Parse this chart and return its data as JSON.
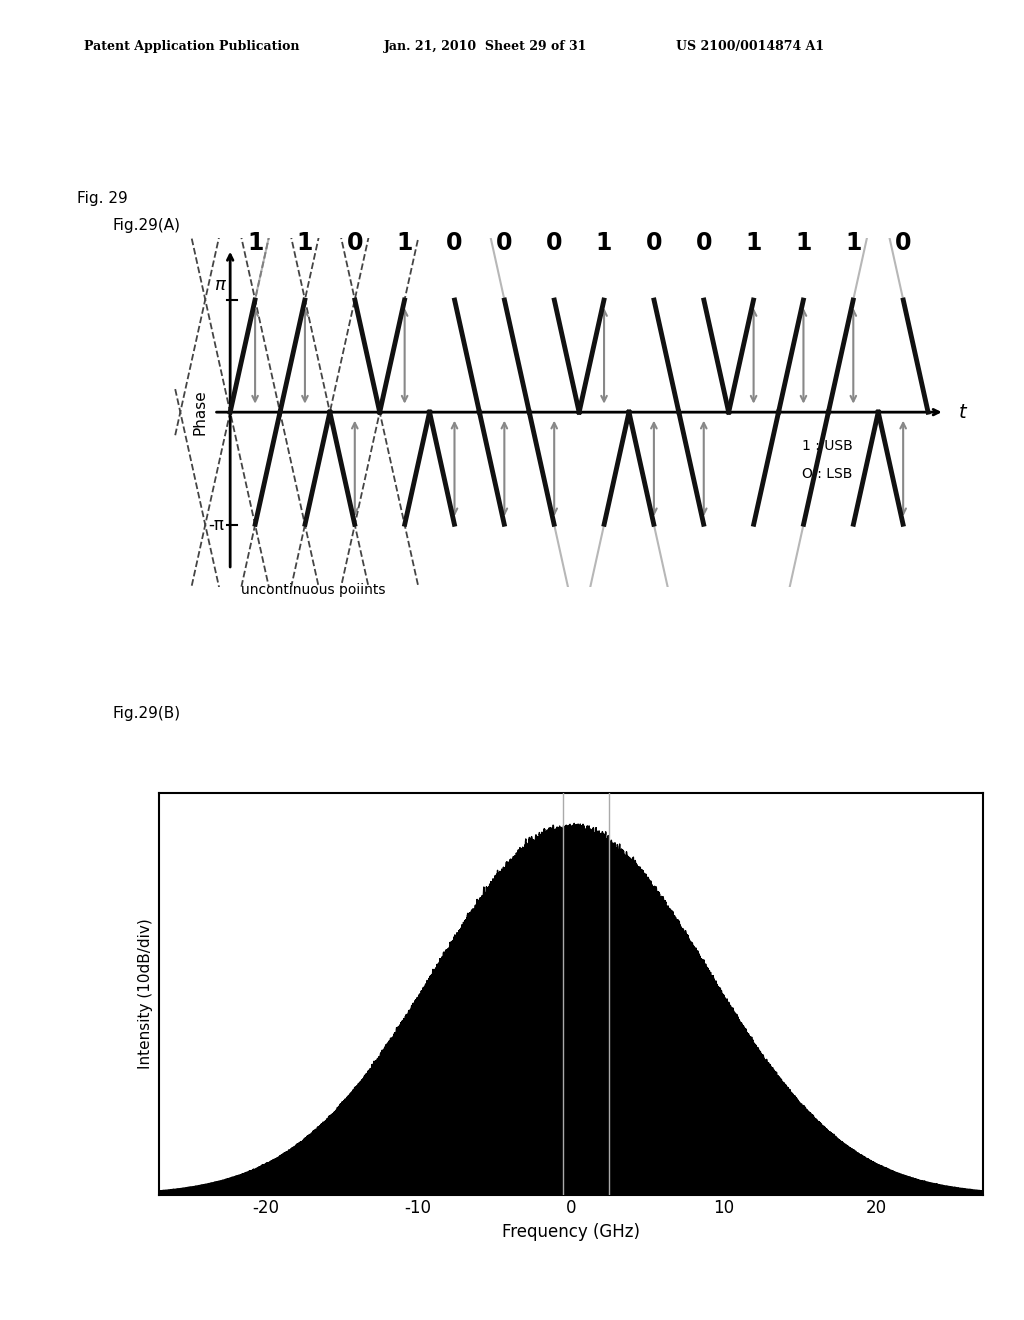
{
  "header_left": "Patent Application Publication",
  "header_mid": "Jan. 21, 2010  Sheet 29 of 31",
  "header_right": "US 2100/0014874 A1",
  "fig_label": "Fig. 29",
  "fig_A_label": "Fig.29(A)",
  "fig_B_label": "Fig.29(B)",
  "bit_sequence": [
    "1",
    "1",
    "0",
    "1",
    "0",
    "0",
    "0",
    "1",
    "0",
    "0",
    "1",
    "1",
    "1",
    "0"
  ],
  "phase_label": "Phase",
  "t_label": "t",
  "pi_label": "π",
  "neg_pi_label": "-π",
  "usb_label": "1 : USB",
  "lsb_label": "O : LSB",
  "uncontinuous_label": "uncontinuous poiints",
  "xlabel_B": "Frequency (GHz)",
  "ylabel_B": "Intensity (10dB/div)",
  "xticks_B": [
    -20,
    -10,
    0,
    10,
    20
  ],
  "background_color": "#ffffff",
  "spectrum_bg": "#ffffff",
  "spectrum_fill": "#000000",
  "narrow_peak_color": "#888888",
  "dashed_color": "#444444",
  "solid_color": "#111111",
  "gray_arrow_color": "#888888"
}
